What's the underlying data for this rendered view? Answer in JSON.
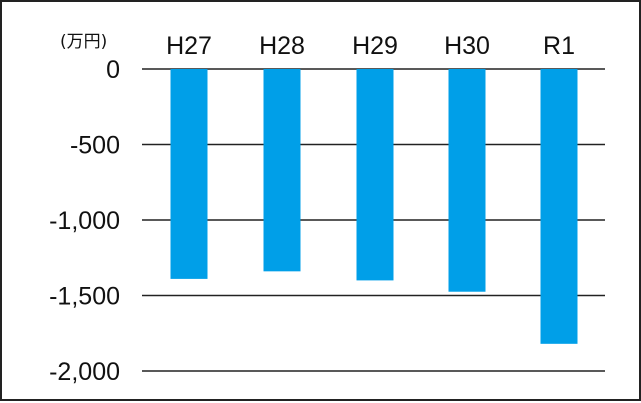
{
  "chart_data": {
    "type": "bar",
    "unit_label": "(万円)",
    "categories": [
      "H27",
      "H28",
      "H29",
      "H30",
      "R1"
    ],
    "values": [
      -1390,
      -1340,
      -1400,
      -1475,
      -1820
    ],
    "y_ticks": [
      0,
      -500,
      -1000,
      -1500,
      -2000
    ],
    "y_tick_labels": [
      "0",
      "-500",
      "-1,000",
      "-1,500",
      "-2,000"
    ],
    "ylim": [
      -2000,
      0
    ],
    "grid": true,
    "bar_color": "#009fe8",
    "grid_color": "#222222"
  }
}
